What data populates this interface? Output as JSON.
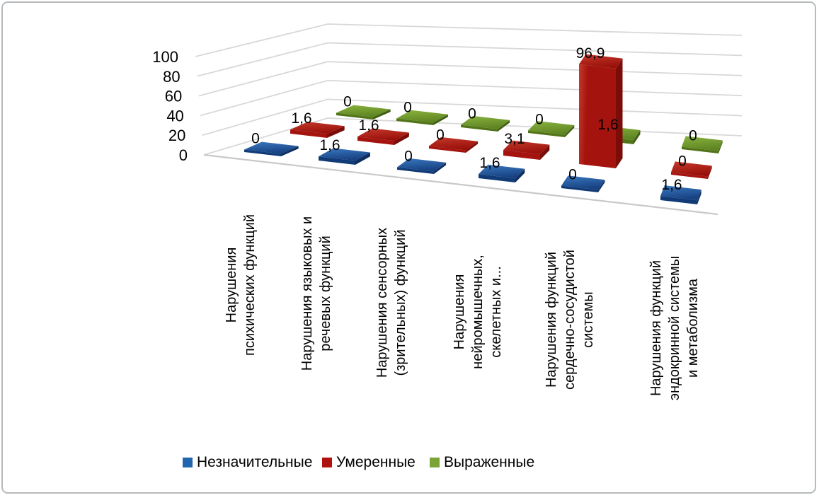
{
  "figure": {
    "background": "#ffffff",
    "border_color": "#b6babd"
  },
  "chart_data": {
    "type": "bar",
    "subtype": "3d-column",
    "title": "",
    "categories": [
      "Нарушения психических функций",
      "Нарушения языковых и речевых функций",
      "Нарушения сенсорных (зрительных) функций",
      "Нарушения нейромышечных, скелетных и...",
      "Нарушения функций сердечно-сосудистой системы",
      "Нарушения функций эндокринной системы и метаболизма"
    ],
    "category_label_lines": [
      [
        "Нарушения",
        "психических функций"
      ],
      [
        "Нарушения языковых и",
        "речевых функций"
      ],
      [
        "Нарушения сенсорных",
        "(зрительных) функций"
      ],
      [
        "Нарушения",
        "нейромышечных,",
        "скелетных и..."
      ],
      [
        "Нарушения функций",
        "сердечно-сосудистой",
        "системы"
      ],
      [
        "Нарушения функций",
        "эндокринной системы",
        "и метаболизма"
      ]
    ],
    "series": [
      {
        "name": "Незначительные",
        "values": [
          0,
          1.6,
          0,
          1.6,
          0,
          1.6
        ],
        "colors": {
          "legend": "#2166AE",
          "top1": "#3B79C2",
          "top2": "#174181",
          "front": "#113B76",
          "side": "#0D2E5F"
        }
      },
      {
        "name": "Умеренные",
        "values": [
          1.6,
          1.6,
          0,
          3.1,
          96.9,
          0
        ],
        "colors": {
          "legend": "#AF1310",
          "top1": "#C53A2B",
          "top2": "#99100B",
          "front": "#A5130E",
          "side": "#7B0D09"
        }
      },
      {
        "name": "Выраженные",
        "values": [
          0,
          0,
          0,
          0,
          1.6,
          0
        ],
        "colors": {
          "legend": "#7BA437",
          "top1": "#8AB33E",
          "top2": "#5F8523",
          "front": "#527419",
          "side": "#415E14"
        }
      }
    ],
    "data_labels_shown": true,
    "decimal_separator": ",",
    "value_axis": {
      "min": 0,
      "max": 100,
      "step": 20,
      "tick_labels": [
        "0",
        "20",
        "40",
        "60",
        "80",
        "100"
      ]
    },
    "legend": {
      "position": "bottom",
      "marker": "square",
      "entries": [
        "Незначительные",
        "Умеренные",
        "Выраженные"
      ]
    },
    "gridline_color": "#D8D8D8",
    "floor_edge_color": "#C9C9C9",
    "text_color": "#000000"
  }
}
